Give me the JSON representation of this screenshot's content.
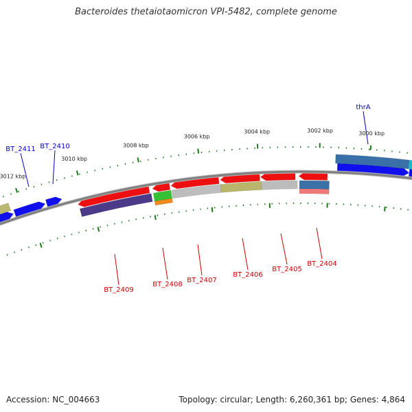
{
  "title": "Bacteroides thetaiotaomicron VPI-5482, complete genome",
  "footer": {
    "accession": "Accession: NC_004663",
    "summary": "Topology: circular; Length: 6,260,361 bp; Genes: 4,864"
  },
  "colors": {
    "background": "#ffffff",
    "backbone": "#808080",
    "tick": "#1a7a1a",
    "forward_label": "#0000cc",
    "reverse_label": "#cc0000"
  },
  "ticks": [
    {
      "label": "3000 kbp"
    },
    {
      "label": "3002 kbp"
    },
    {
      "label": "3004 kbp"
    },
    {
      "label": "3006 kbp"
    },
    {
      "label": "3008 kbp"
    },
    {
      "label": "3010 kbp"
    },
    {
      "label": "3012 kbp"
    }
  ],
  "labels": {
    "forward": [
      "thrA",
      "BT_2410",
      "BT_2411"
    ],
    "reverse": [
      "BT_2404",
      "BT_2405",
      "BT_2406",
      "BT_2407",
      "BT_2408",
      "BT_2409"
    ]
  }
}
